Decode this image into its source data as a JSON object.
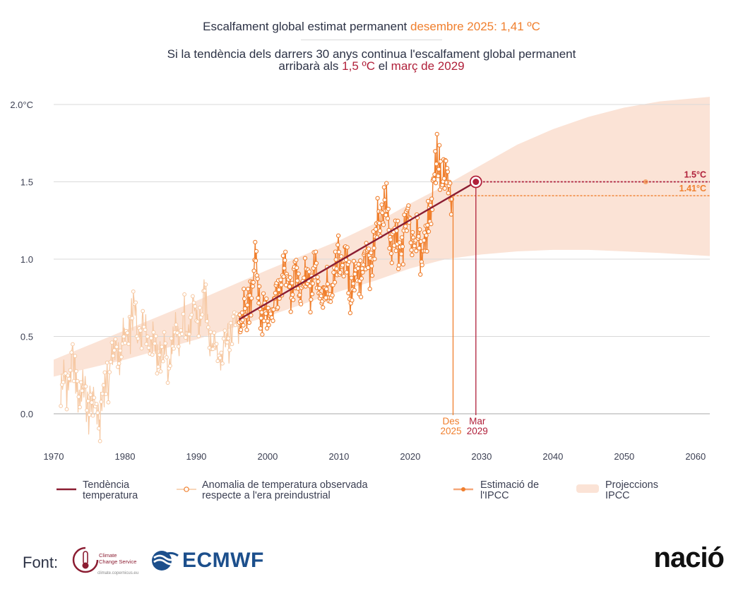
{
  "header": {
    "line1_prefix": "Escalfament global estimat permanent ",
    "line1_highlight": "desembre 2025: 1,41 ºC",
    "line2": "Si la tendència dels darrers 30 anys continua l'escalfament global permanent",
    "line3_prefix": "arribarà als ",
    "line3_value": "1,5 ºC",
    "line3_mid": " el ",
    "line3_date": "març de 2029"
  },
  "legend": {
    "trend": "Tendència temperatura",
    "observed": "Anomalia de temperatura observada respecte a l'era preindustrial",
    "ipcc_estimate": "Estimació de l'IPCC",
    "ipcc_projections": "Projeccions IPCC"
  },
  "footer": {
    "source_label": "Font:",
    "c3s_name": "Climate Change Service",
    "c3s_url": "climate.copernicus.eu",
    "ecmwf": "ECMWF",
    "brand": "nació"
  },
  "colors": {
    "observed": "#f07f2d",
    "observed_faded": "#f6c8a2",
    "trend": "#8b1d32",
    "projection_band": "#fbe3d6",
    "target": "#b0203a",
    "estimate": "#f07f2d",
    "grid": "#d9d9d9",
    "axis_text": "#3b3f52"
  },
  "chart_data": {
    "type": "line",
    "title": "Escalfament global estimat permanent",
    "xlabel": "",
    "ylabel": "",
    "xlim": [
      1970,
      2062
    ],
    "ylim": [
      -0.2,
      2.05
    ],
    "x_ticks": [
      1970,
      1980,
      1990,
      2000,
      2010,
      2020,
      2030,
      2040,
      2050,
      2060
    ],
    "y_ticks": [
      0.0,
      0.5,
      1.0,
      1.5,
      2.0
    ],
    "y_tick_labels": [
      "0.0",
      "0.5",
      "1.0",
      "1.5",
      "2.0°C"
    ],
    "series": [
      {
        "name": "Anomalia de temperatura observada respecte a l'era preindustrial",
        "kind": "monthly_observed",
        "start_year": 1971,
        "end_year": 2025.9,
        "highlight_from": 1996,
        "anchors": [
          [
            1971,
            0.12
          ],
          [
            1972.5,
            0.3
          ],
          [
            1974,
            0.12
          ],
          [
            1975.5,
            0.05
          ],
          [
            1976.5,
            0.0
          ],
          [
            1978,
            0.35
          ],
          [
            1980,
            0.45
          ],
          [
            1981,
            0.62
          ],
          [
            1983,
            0.55
          ],
          [
            1984.5,
            0.4
          ],
          [
            1986,
            0.35
          ],
          [
            1988,
            0.55
          ],
          [
            1990,
            0.62
          ],
          [
            1991.5,
            0.68
          ],
          [
            1992.5,
            0.4
          ],
          [
            1994,
            0.45
          ],
          [
            1995.5,
            0.58
          ],
          [
            1997,
            0.62
          ],
          [
            1998.2,
            0.95
          ],
          [
            1999.5,
            0.6
          ],
          [
            2001,
            0.7
          ],
          [
            2002.3,
            0.88
          ],
          [
            2003.5,
            0.85
          ],
          [
            2005,
            0.82
          ],
          [
            2006.5,
            0.88
          ],
          [
            2008,
            0.72
          ],
          [
            2009.5,
            0.95
          ],
          [
            2010.3,
            1.05
          ],
          [
            2011.5,
            0.85
          ],
          [
            2013,
            0.92
          ],
          [
            2014.5,
            0.98
          ],
          [
            2016.1,
            1.38
          ],
          [
            2017.5,
            1.12
          ],
          [
            2018.5,
            1.05
          ],
          [
            2019.8,
            1.25
          ],
          [
            2021,
            1.08
          ],
          [
            2022.3,
            1.12
          ],
          [
            2023.3,
            1.55
          ],
          [
            2024.2,
            1.62
          ],
          [
            2025.2,
            1.48
          ],
          [
            2025.9,
            1.38
          ]
        ]
      },
      {
        "name": "Tendència temperatura",
        "x": [
          1996,
          2029.2
        ],
        "y": [
          0.61,
          1.5
        ]
      },
      {
        "name": "Projeccions IPCC",
        "kind": "band",
        "x": [
          1970,
          1980,
          1990,
          2000,
          2010,
          2015,
          2020,
          2025,
          2030,
          2035,
          2040,
          2045,
          2050,
          2055,
          2062
        ],
        "lower": [
          0.24,
          0.35,
          0.48,
          0.63,
          0.79,
          0.86,
          0.94,
          1.0,
          1.03,
          1.05,
          1.06,
          1.06,
          1.05,
          1.04,
          1.02
        ],
        "upper": [
          0.35,
          0.54,
          0.73,
          0.93,
          1.12,
          1.23,
          1.36,
          1.48,
          1.61,
          1.74,
          1.84,
          1.92,
          1.98,
          2.02,
          2.05
        ]
      },
      {
        "name": "Estimació de l'IPCC",
        "x": [
          2053
        ],
        "y": [
          1.5
        ]
      }
    ],
    "reference_lines": [
      {
        "label": "1.5°C",
        "value": 1.5,
        "from_x": 2029.2
      },
      {
        "label": "1.41°C",
        "value": 1.41,
        "from_x": 2026
      }
    ],
    "markers": [
      {
        "label_line1": "Des",
        "label_line2": "2025",
        "x": 2026,
        "y": 1.41
      },
      {
        "label_line1": "Mar",
        "label_line2": "2029",
        "x": 2029.2,
        "y": 1.5
      }
    ],
    "gridlines": true
  }
}
